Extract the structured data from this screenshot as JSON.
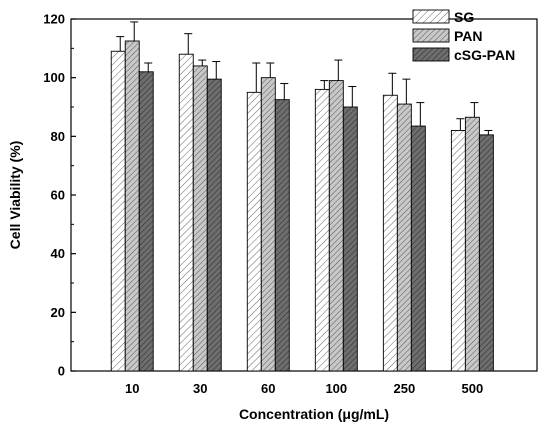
{
  "chart_data": {
    "type": "bar",
    "title": "",
    "xlabel": "Concentration (μg/mL)",
    "ylabel": "Cell Viability (%)",
    "ylim": [
      0,
      120
    ],
    "yticks": [
      "0",
      "20",
      "40",
      "60",
      "80",
      "100",
      "120"
    ],
    "categories": [
      "10",
      "30",
      "60",
      "100",
      "250",
      "500"
    ],
    "series": [
      {
        "name": "SG",
        "pattern": "light-hatch",
        "fill": "#ffffff",
        "values": [
          109,
          108,
          95,
          96,
          94,
          82
        ],
        "errors": [
          5,
          7,
          10,
          3,
          7.5,
          4
        ]
      },
      {
        "name": "PAN",
        "pattern": "medium-hatch",
        "fill": "#c8c8c8",
        "values": [
          112.5,
          104,
          100,
          99,
          91,
          86.5
        ],
        "errors": [
          6.5,
          2,
          5,
          7,
          8.5,
          5
        ]
      },
      {
        "name": "cSG-PAN",
        "pattern": "dark-hatch",
        "fill": "#6e6e6e",
        "values": [
          102,
          99.5,
          92.5,
          90,
          83.5,
          80.5
        ],
        "errors": [
          3,
          6,
          5.5,
          7,
          8,
          1.5
        ]
      }
    ],
    "legend_position": "top-right",
    "grid": false
  }
}
